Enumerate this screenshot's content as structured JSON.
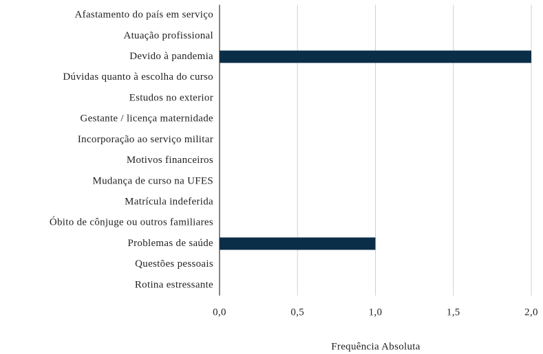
{
  "chart_data": {
    "type": "barh",
    "categories": [
      "Afastamento do país em serviço",
      "Atuação profissional",
      "Devido à pandemia",
      "Dúvidas quanto à escolha do curso",
      "Estudos no exterior",
      "Gestante / licença maternidade",
      "Incorporação ao serviço militar",
      "Motivos financeiros",
      "Mudança de curso na UFES",
      "Matrícula indeferida",
      "Óbito de cônjuge ou outros familiares",
      "Problemas de saúde",
      "Questões pessoais",
      "Rotina estressante"
    ],
    "values": [
      0,
      0,
      2,
      0,
      0,
      0,
      0,
      0,
      0,
      0,
      0,
      1,
      0,
      0
    ],
    "color": "#0b2e48",
    "xlabel": "Frequência Absoluta",
    "xlim": [
      0,
      2
    ],
    "xticks": [
      {
        "value": 0,
        "label": "0,0"
      },
      {
        "value": 0.5,
        "label": "0,5"
      },
      {
        "value": 1,
        "label": "1,0"
      },
      {
        "value": 1.5,
        "label": "1,5"
      },
      {
        "value": 2,
        "label": "2,0"
      }
    ],
    "grid": true
  }
}
